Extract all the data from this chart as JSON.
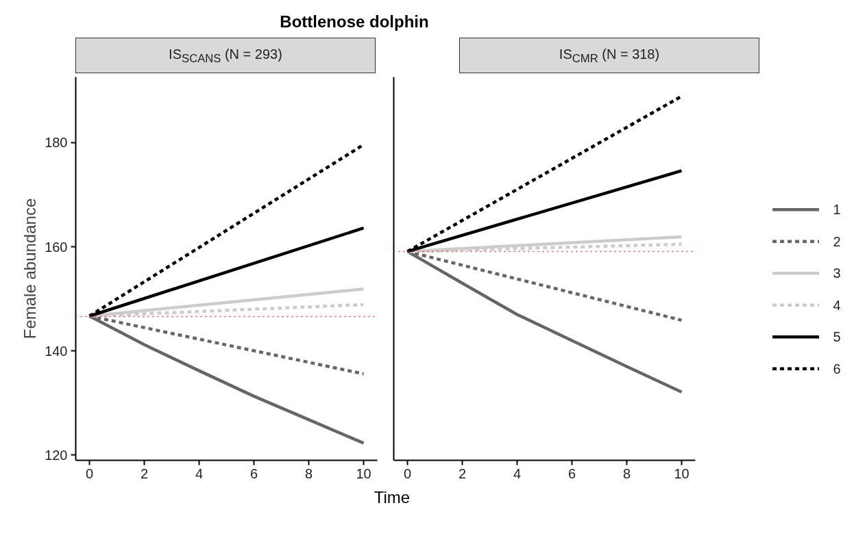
{
  "chart_data": [
    {
      "type": "line",
      "title": "Bottlenose dolphin",
      "subtitle": "IS$_{SCANS}$ (N = 293)",
      "xlabel": "Time",
      "ylabel": "Female abundance",
      "xlim": [
        -0.5,
        10.5
      ],
      "ylim": [
        119,
        192.6
      ],
      "xticks": [
        0,
        2,
        4,
        6,
        8,
        10
      ],
      "yticks": [
        120,
        140,
        160,
        180
      ],
      "grid": false,
      "legend": false,
      "series": [
        {
          "color": "#666666",
          "line_style": "solid",
          "x": [
            0,
            2,
            4,
            6,
            8,
            10
          ],
          "values": [
            146.7,
            141.2,
            136.2,
            131.3,
            126.8,
            122.3
          ]
        },
        {
          "color": "#666666",
          "line_style": "dashed",
          "x": [
            0,
            10
          ],
          "values": [
            146.7,
            135.6
          ]
        },
        {
          "color": "#cccccc",
          "line_style": "solid",
          "x": [
            0,
            10
          ],
          "values": [
            146.7,
            151.9
          ]
        },
        {
          "color": "#cccccc",
          "line_style": "dashed",
          "x": [
            0,
            10
          ],
          "values": [
            146.7,
            148.9
          ]
        },
        {
          "color": "#000000",
          "line_style": "solid",
          "x": [
            0,
            10
          ],
          "values": [
            146.7,
            163.6
          ]
        },
        {
          "color": "#000000",
          "line_style": "dashed",
          "x": [
            0,
            10
          ],
          "values": [
            146.7,
            179.6
          ]
        }
      ],
      "ref_lines": [
        {
          "axis": "y",
          "value": 146.6,
          "color": "#ff3333",
          "line_style": "dotted"
        }
      ]
    },
    {
      "type": "line",
      "subtitle": "IS$_{CMR}$ (N = 318)",
      "xlim": [
        -0.5,
        10.5
      ],
      "ylim": [
        119,
        192.6
      ],
      "xticks": [
        0,
        2,
        4,
        6,
        8,
        10
      ],
      "tick_labels": "x",
      "grid": false,
      "legend": "right",
      "series": [
        {
          "name": "1",
          "color": "#666666",
          "line_style": "solid",
          "x": [
            0,
            2,
            4,
            6,
            8,
            10
          ],
          "values": [
            159.1,
            153.0,
            147.0,
            142.0,
            137.0,
            132.1
          ]
        },
        {
          "name": "2",
          "color": "#666666",
          "line_style": "dashed",
          "x": [
            0,
            10
          ],
          "values": [
            159.1,
            145.9
          ]
        },
        {
          "name": "3",
          "color": "#cccccc",
          "line_style": "solid",
          "x": [
            0,
            10
          ],
          "values": [
            159.1,
            161.9
          ]
        },
        {
          "name": "4",
          "color": "#cccccc",
          "line_style": "dashed",
          "x": [
            0,
            10
          ],
          "values": [
            159.1,
            160.5
          ]
        },
        {
          "name": "5",
          "color": "#000000",
          "line_style": "solid",
          "x": [
            0,
            10
          ],
          "values": [
            159.1,
            174.6
          ]
        },
        {
          "name": "6",
          "color": "#000000",
          "line_style": "dashed",
          "x": [
            0,
            10
          ],
          "values": [
            159.1,
            188.9
          ]
        }
      ],
      "ref_lines": [
        {
          "axis": "y",
          "value": 159.1,
          "color": "#ff3333",
          "line_style": "dotted"
        }
      ]
    }
  ]
}
